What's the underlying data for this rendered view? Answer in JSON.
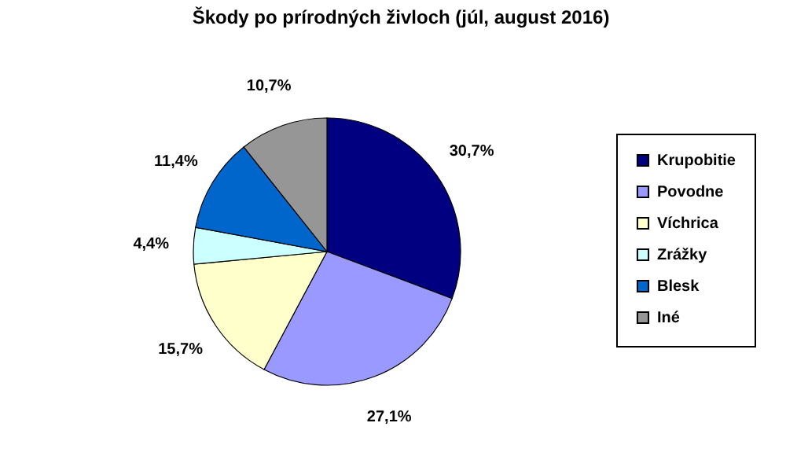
{
  "chart_data": {
    "type": "pie",
    "title": "Škody po prírodných živloch (júl, august 2016)",
    "categories": [
      "Krupobitie",
      "Povodne",
      "Víchrica",
      "Zrážky",
      "Blesk",
      "Iné"
    ],
    "values": [
      30.7,
      27.1,
      15.7,
      4.4,
      11.4,
      10.7
    ],
    "value_labels": [
      "30,7%",
      "27,1%",
      "15,7%",
      "4,4%",
      "11,4%",
      "10,7%"
    ],
    "colors": [
      "#000080",
      "#9999ff",
      "#ffffcc",
      "#ccffff",
      "#0066cc",
      "#969696"
    ],
    "legend": "right"
  }
}
